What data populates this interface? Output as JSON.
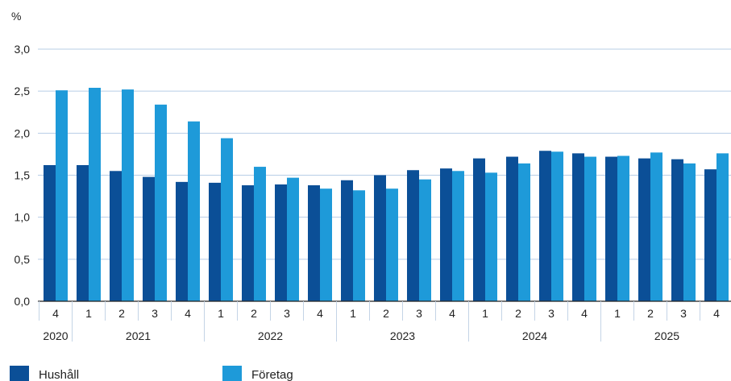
{
  "chart_data": {
    "type": "bar",
    "ylabel": "%",
    "ylim": [
      0,
      3
    ],
    "yticks": [
      "0,0",
      "0,5",
      "1,0",
      "1,5",
      "2,0",
      "2,5",
      "3,0"
    ],
    "categories": [
      "4",
      "1",
      "2",
      "3",
      "4",
      "1",
      "2",
      "3",
      "4",
      "1",
      "2",
      "3",
      "4",
      "1",
      "2",
      "3",
      "4",
      "1",
      "2",
      "3",
      "4"
    ],
    "years": [
      {
        "label": "2020",
        "from": 0,
        "to": 0
      },
      {
        "label": "2021",
        "from": 1,
        "to": 4
      },
      {
        "label": "2022",
        "from": 5,
        "to": 8
      },
      {
        "label": "2023",
        "from": 9,
        "to": 12
      },
      {
        "label": "2024",
        "from": 13,
        "to": 16
      },
      {
        "label": "2025",
        "from": 17,
        "to": 20
      }
    ],
    "grid": true,
    "legend_position": "bottom-left",
    "series": [
      {
        "name": "Hushåll",
        "color": "#0b4f97",
        "values": [
          1.62,
          1.62,
          1.55,
          1.48,
          1.42,
          1.41,
          1.38,
          1.39,
          1.38,
          1.44,
          1.5,
          1.56,
          1.58,
          1.7,
          1.72,
          1.79,
          1.76,
          1.72,
          1.7,
          1.69,
          1.57
        ]
      },
      {
        "name": "Företag",
        "color": "#1e9ad9",
        "values": [
          2.51,
          2.54,
          2.52,
          2.34,
          2.14,
          1.94,
          1.6,
          1.47,
          1.34,
          1.32,
          1.34,
          1.45,
          1.55,
          1.53,
          1.64,
          1.78,
          1.72,
          1.73,
          1.77,
          1.64,
          1.76
        ]
      }
    ]
  }
}
